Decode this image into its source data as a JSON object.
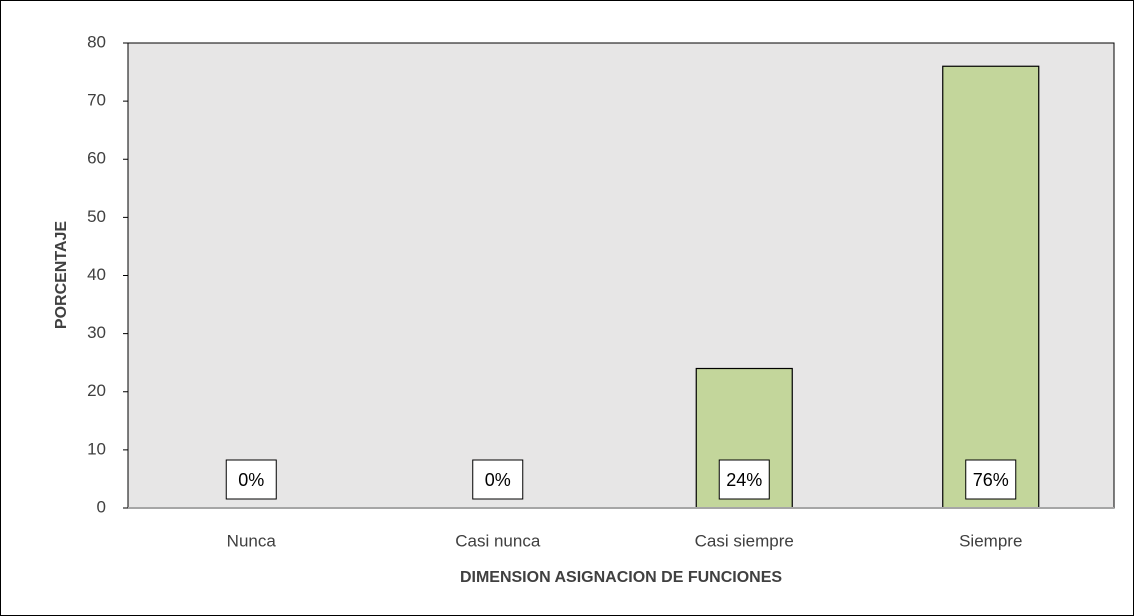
{
  "chart_data": {
    "type": "bar",
    "categories": [
      "Nunca",
      "Casi nunca",
      "Casi siempre",
      "Siempre"
    ],
    "values": [
      0,
      0,
      24,
      76
    ],
    "value_labels": [
      "0%",
      "0%",
      "24%",
      "76%"
    ],
    "color": "#c3d69b",
    "xlabel": "DIMENSION ASIGNACION DE FUNCIONES",
    "ylabel": "PORCENTAJE",
    "ylim": [
      0,
      80
    ],
    "yticks": [
      0,
      10,
      20,
      30,
      40,
      50,
      60,
      70,
      80
    ]
  }
}
